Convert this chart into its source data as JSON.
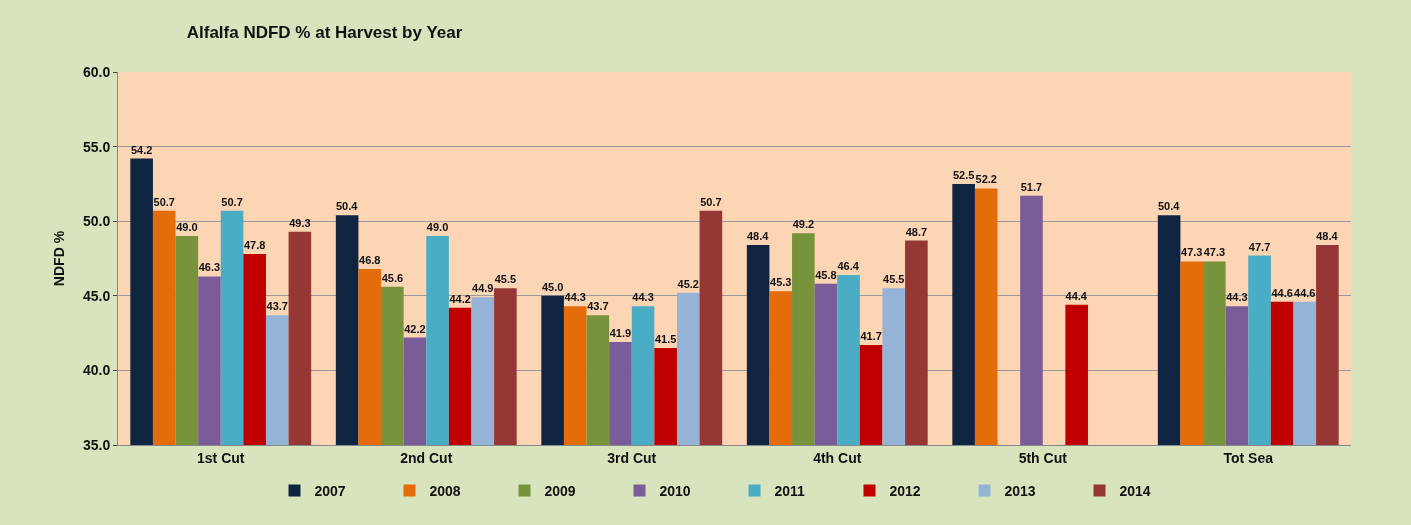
{
  "chart_data": {
    "type": "bar",
    "title": "Alfalfa NDFD % at Harvest by Year",
    "ylabel": "NDFD %",
    "categories": [
      "1st Cut",
      "2nd Cut",
      "3rd Cut",
      "4th Cut",
      "5th Cut",
      "Tot Sea"
    ],
    "series": [
      {
        "name": "2007",
        "color": "#0e2441",
        "values": [
          54.2,
          50.4,
          45.0,
          48.4,
          52.5,
          50.4
        ],
        "value_labels": [
          "54.2",
          "50.4",
          "45.0",
          "48.4",
          "52.5",
          "50.4"
        ]
      },
      {
        "name": "2008",
        "color": "#e46c0a",
        "values": [
          50.7,
          46.8,
          44.3,
          45.3,
          52.2,
          47.3
        ],
        "value_labels": [
          "50.7",
          "46.8",
          "44.3",
          "45.3",
          "52.2",
          "47.3"
        ]
      },
      {
        "name": "2009",
        "color": "#77933c",
        "values": [
          49.0,
          45.6,
          43.7,
          49.2,
          null,
          47.3
        ],
        "value_labels": [
          "49.0",
          "45.6",
          "43.7",
          "49.2",
          null,
          "47.3"
        ]
      },
      {
        "name": "2010",
        "color": "#7a5c99",
        "values": [
          46.3,
          42.2,
          41.9,
          45.8,
          51.7,
          44.3
        ],
        "value_labels": [
          "46.3",
          "42.2",
          "41.9",
          "45.8",
          "51.7",
          "44.3"
        ]
      },
      {
        "name": "2011",
        "color": "#4bacc6",
        "values": [
          50.7,
          49.0,
          44.3,
          46.4,
          null,
          47.7
        ],
        "value_labels": [
          "50.7",
          "49.0",
          "44.3",
          "46.4",
          null,
          "47.7"
        ]
      },
      {
        "name": "2012",
        "color": "#c00000",
        "values": [
          47.8,
          44.2,
          41.5,
          41.7,
          44.4,
          44.6
        ],
        "value_labels": [
          "47.8",
          "44.2",
          "41.5",
          "41.7",
          "44.4",
          "44.6"
        ]
      },
      {
        "name": "2013",
        "color": "#95b3d7",
        "values": [
          43.7,
          44.9,
          45.2,
          45.5,
          null,
          44.6
        ],
        "value_labels": [
          "43.7",
          "44.9",
          "45.2",
          "45.5",
          null,
          "44.6"
        ]
      },
      {
        "name": "2014",
        "color": "#953735",
        "values": [
          49.3,
          45.5,
          50.7,
          48.7,
          null,
          48.4
        ],
        "value_labels": [
          "49.3",
          "45.5",
          "50.7",
          "48.7",
          null,
          "48.4"
        ]
      }
    ],
    "ylim": [
      35.0,
      60.0
    ],
    "yticks": [
      {
        "value": 35,
        "label": "35.0"
      },
      {
        "value": 40,
        "label": "40.0"
      },
      {
        "value": 45,
        "label": "45.0"
      },
      {
        "value": 50,
        "label": "50.0"
      },
      {
        "value": 55,
        "label": "55.0"
      },
      {
        "value": 60,
        "label": "60.0"
      }
    ],
    "grid": "y",
    "legend": "bottom"
  }
}
